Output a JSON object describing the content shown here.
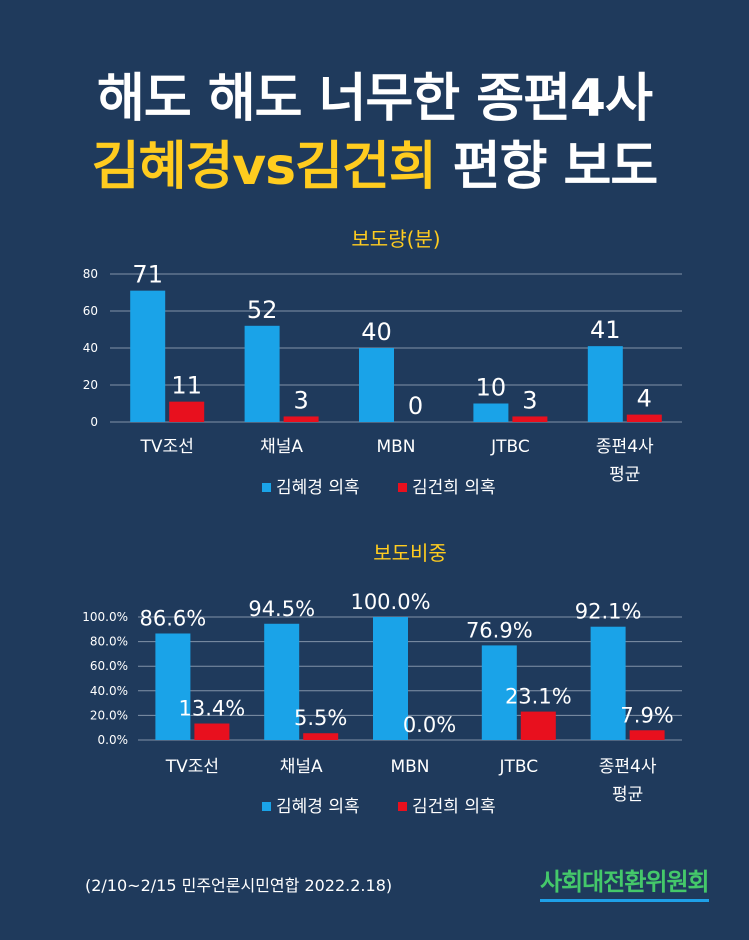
{
  "title": {
    "line1": "해도 해도 너무한 종편4사",
    "line2_highlight": "김혜경vs김건희",
    "line2_rest": "편향 보도"
  },
  "chart_data": [
    {
      "type": "bar",
      "title": "보도량(분)",
      "categories": [
        "TV조선",
        "채널A",
        "MBN",
        "JTBC",
        "종편4사\n평균"
      ],
      "series": [
        {
          "name": "김혜경 의혹",
          "color": "#1aa3e8",
          "values": [
            71,
            52,
            40,
            10,
            41
          ],
          "labels": [
            "71",
            "52",
            "40",
            "10",
            "41"
          ]
        },
        {
          "name": "김건희 의혹",
          "color": "#e8101e",
          "values": [
            11,
            3,
            0,
            3,
            4
          ],
          "labels": [
            "11",
            "3",
            "0",
            "3",
            "4"
          ]
        }
      ],
      "yticks": [
        "0",
        "20",
        "40",
        "60",
        "80"
      ],
      "ylim": [
        0,
        80
      ],
      "grid": true,
      "legend": "bottom"
    },
    {
      "type": "bar",
      "title": "보도비중",
      "categories": [
        "TV조선",
        "채널A",
        "MBN",
        "JTBC",
        "종편4사\n평균"
      ],
      "series": [
        {
          "name": "김혜경 의혹",
          "color": "#1aa3e8",
          "values": [
            86.6,
            94.5,
            100.0,
            76.9,
            92.1
          ],
          "labels": [
            "86.6%",
            "94.5%",
            "100.0%",
            "76.9%",
            "92.1%"
          ]
        },
        {
          "name": "김건희 의혹",
          "color": "#e8101e",
          "values": [
            13.4,
            5.5,
            0.0,
            23.1,
            7.9
          ],
          "labels": [
            "13.4%",
            "5.5%",
            "0.0%",
            "23.1%",
            "7.9%"
          ]
        }
      ],
      "yticks": [
        "0.0%",
        "20.0%",
        "40.0%",
        "60.0%",
        "80.0%",
        "100.0%"
      ],
      "ylim": [
        0,
        100
      ],
      "grid": true,
      "legend": "bottom"
    }
  ],
  "footer": {
    "source": "(2/10~2/15 민주언론시민연합 2022.2.18)",
    "org": "사회대전환위원회"
  }
}
